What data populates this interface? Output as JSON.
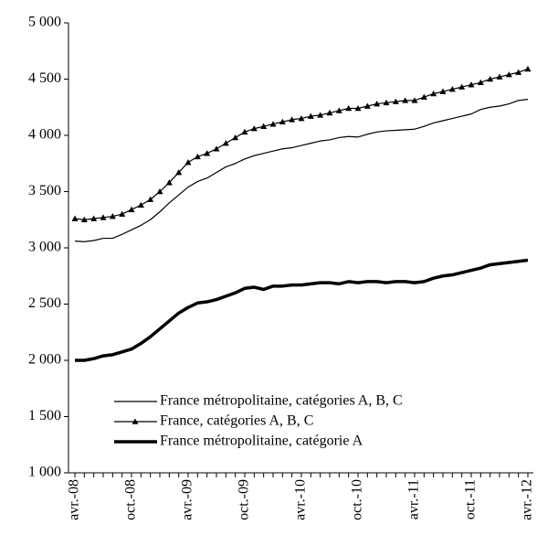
{
  "chart_data": {
    "type": "line",
    "categories": [
      "avr.-08",
      null,
      null,
      null,
      null,
      null,
      "oct.-08",
      null,
      null,
      null,
      null,
      null,
      "avr.-09",
      null,
      null,
      null,
      null,
      null,
      "oct.-09",
      null,
      null,
      null,
      null,
      null,
      "avr.-10",
      null,
      null,
      null,
      null,
      null,
      "oct.-10",
      null,
      null,
      null,
      null,
      null,
      "avr.-11",
      null,
      null,
      null,
      null,
      null,
      "oct.-11",
      null,
      null,
      null,
      null,
      null,
      "avr.-12"
    ],
    "series": [
      {
        "name": "France métropolitaine, catégories A, B, C",
        "color": "#000000",
        "line_width": 1.2,
        "marker": null,
        "values": [
          3060,
          3055,
          3065,
          3085,
          3085,
          3120,
          3160,
          3200,
          3250,
          3320,
          3400,
          3470,
          3540,
          3590,
          3620,
          3670,
          3720,
          3750,
          3790,
          3820,
          3840,
          3860,
          3880,
          3890,
          3910,
          3930,
          3950,
          3960,
          3980,
          3990,
          3985,
          4010,
          4030,
          4040,
          4045,
          4050,
          4055,
          4080,
          4110,
          4130,
          4150,
          4170,
          4190,
          4230,
          4250,
          4260,
          4280,
          4310,
          4320
        ]
      },
      {
        "name": "France, catégories A, B, C",
        "color": "#000000",
        "line_width": 1.2,
        "marker": "triangle",
        "values": [
          3260,
          3250,
          3260,
          3270,
          3280,
          3300,
          3340,
          3380,
          3430,
          3500,
          3580,
          3670,
          3760,
          3810,
          3840,
          3880,
          3930,
          3980,
          4030,
          4060,
          4080,
          4100,
          4120,
          4140,
          4150,
          4170,
          4180,
          4200,
          4220,
          4240,
          4240,
          4260,
          4280,
          4290,
          4300,
          4310,
          4310,
          4340,
          4370,
          4390,
          4410,
          4430,
          4450,
          4470,
          4500,
          4520,
          4540,
          4560,
          4590
        ]
      },
      {
        "name": "France métropolitaine, catégorie A",
        "color": "#000000",
        "line_width": 3.5,
        "marker": null,
        "values": [
          2000,
          2000,
          2015,
          2040,
          2050,
          2075,
          2100,
          2150,
          2210,
          2280,
          2350,
          2420,
          2470,
          2510,
          2520,
          2540,
          2570,
          2600,
          2640,
          2650,
          2630,
          2660,
          2660,
          2670,
          2670,
          2680,
          2690,
          2690,
          2680,
          2700,
          2690,
          2700,
          2700,
          2690,
          2700,
          2700,
          2690,
          2700,
          2730,
          2750,
          2760,
          2780,
          2800,
          2820,
          2850,
          2860,
          2870,
          2880,
          2890
        ]
      }
    ],
    "ylim": [
      1000,
      5000
    ],
    "yticks": [
      {
        "value": 1000,
        "label": "1 000"
      },
      {
        "value": 1500,
        "label": "1 500"
      },
      {
        "value": 2000,
        "label": "2 000"
      },
      {
        "value": 2500,
        "label": "2 500"
      },
      {
        "value": 3000,
        "label": "3 000"
      },
      {
        "value": 3500,
        "label": "3 500"
      },
      {
        "value": 4000,
        "label": "4 000"
      },
      {
        "value": 4500,
        "label": "4 500"
      },
      {
        "value": 5000,
        "label": "5 000"
      }
    ],
    "legend": "lower-right"
  }
}
